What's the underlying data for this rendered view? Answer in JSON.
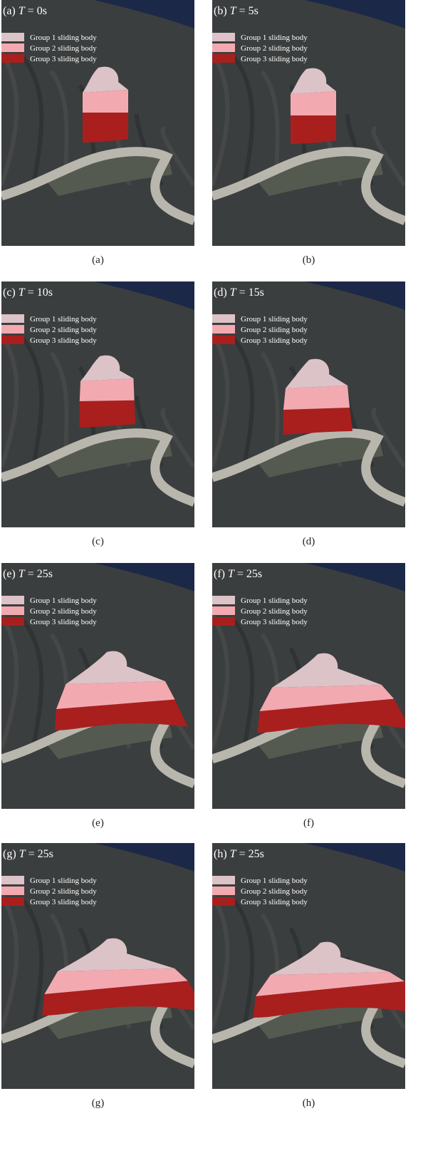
{
  "legend": [
    "Group 1 sliding body",
    "Group 2 sliding body",
    "Group 3 sliding body"
  ],
  "panels": [
    {
      "tag": "(a)",
      "symbol": "T",
      "time": "= 0s",
      "caption": "(a)"
    },
    {
      "tag": "(b)",
      "symbol": "T",
      "time": "= 5s",
      "caption": "(b)"
    },
    {
      "tag": "(c)",
      "symbol": "T",
      "time": "= 10s",
      "caption": "(c)"
    },
    {
      "tag": "(d)",
      "symbol": "T",
      "time": "= 15s",
      "caption": "(d)"
    },
    {
      "tag": "(e)",
      "symbol": "T",
      "time": "= 25s",
      "caption": "(e)"
    },
    {
      "tag": "(f)",
      "symbol": "T",
      "time": "= 25s",
      "caption": "(f)"
    },
    {
      "tag": "(g)",
      "symbol": "T",
      "time": "= 25s",
      "caption": "(g)"
    },
    {
      "tag": "(h)",
      "symbol": "T",
      "time": "= 25s",
      "caption": "(h)"
    }
  ]
}
